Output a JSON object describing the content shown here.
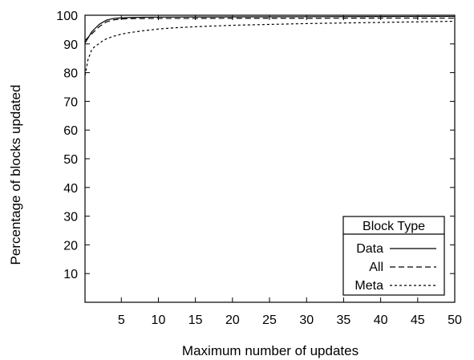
{
  "chart_data": {
    "type": "line",
    "title": "",
    "xlabel": "Maximum number of updates",
    "ylabel": "Percentage of blocks updated",
    "xlim": [
      0.1,
      50
    ],
    "ylim": [
      0,
      100
    ],
    "x_ticks": [
      5,
      10,
      15,
      20,
      25,
      30,
      35,
      40,
      45,
      50
    ],
    "y_ticks": [
      10,
      20,
      30,
      40,
      50,
      60,
      70,
      80,
      90,
      100
    ],
    "grid": false,
    "legend": {
      "title": "Block Type",
      "placement": "bottom-right"
    },
    "series": [
      {
        "name": "Data",
        "style": "solid",
        "x": [
          0.1,
          1,
          2,
          3,
          4,
          5,
          6,
          8,
          10,
          15,
          20,
          30,
          40,
          50
        ],
        "y": [
          90.3,
          94.2,
          96.8,
          98.3,
          98.9,
          99.1,
          99.2,
          99.3,
          99.35,
          99.4,
          99.45,
          99.5,
          99.55,
          99.6
        ]
      },
      {
        "name": "All",
        "style": "dashed",
        "x": [
          0.1,
          1,
          2,
          3,
          4,
          5,
          6,
          8,
          10,
          15,
          20,
          30,
          40,
          50
        ],
        "y": [
          91.2,
          93.5,
          96.0,
          97.7,
          98.4,
          98.7,
          98.8,
          98.85,
          98.9,
          98.9,
          98.95,
          98.95,
          99.0,
          99.0
        ]
      },
      {
        "name": "Meta",
        "style": "dotted",
        "x": [
          0.1,
          0.5,
          1,
          1.5,
          2,
          2.5,
          3,
          4,
          5,
          6,
          8,
          10,
          12,
          15,
          20,
          25,
          30,
          35,
          40,
          45,
          50
        ],
        "y": [
          79.0,
          84.5,
          88.0,
          89.3,
          90.1,
          91.1,
          91.8,
          92.7,
          93.4,
          93.9,
          94.6,
          95.2,
          95.6,
          96.0,
          96.5,
          96.8,
          97.1,
          97.3,
          97.5,
          97.7,
          97.9
        ]
      }
    ]
  }
}
